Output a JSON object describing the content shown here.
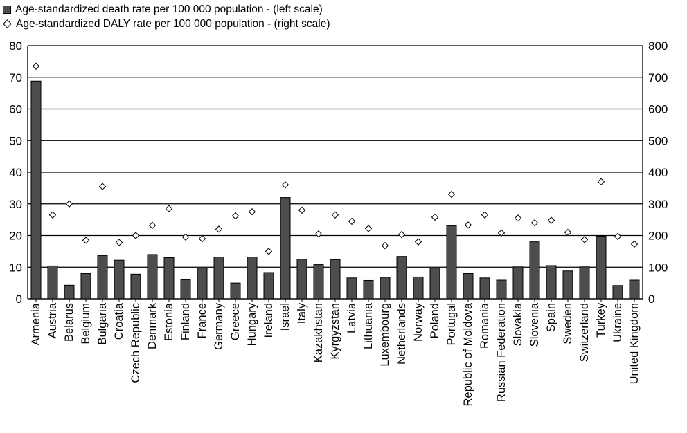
{
  "chart_data": {
    "type": "bar",
    "legend": [
      {
        "label": "Age-standardized death rate per 100 000 population - (left scale)",
        "marker": "bar"
      },
      {
        "label": "Age-standardized DALY rate per 100 000 population - (right scale)",
        "marker": "diamond"
      }
    ],
    "categories": [
      "Armenia",
      "Austria",
      "Belarus",
      "Belgium",
      "Bulgaria",
      "Croatia",
      "Czech Republic",
      "Denmark",
      "Estonia",
      "Finland",
      "France",
      "Germany",
      "Greece",
      "Hungary",
      "Ireland",
      "Israel",
      "Italy",
      "Kazakhstan",
      "Kyrgyzstan",
      "Latvia",
      "Lithuania",
      "Luxembourg",
      "Netherlands",
      "Norway",
      "Poland",
      "Portugal",
      "Republic of Moldova",
      "Romania",
      "Russian Federation",
      "Slovakia",
      "Slovenia",
      "Spain",
      "Sweden",
      "Switzerland",
      "Turkey",
      "Ukraine",
      "United Kingdom"
    ],
    "series": [
      {
        "name": "Age-standardized death rate per 100 000 population - (left scale)",
        "axis": "left",
        "type": "bar",
        "values": [
          68.8,
          10.4,
          4.3,
          8.0,
          13.7,
          12.2,
          7.8,
          14.0,
          13.0,
          6.0,
          9.7,
          13.2,
          5.0,
          13.2,
          8.3,
          32.0,
          12.5,
          10.8,
          12.4,
          6.6,
          5.8,
          6.8,
          13.4,
          6.9,
          9.7,
          23.1,
          8.0,
          6.6,
          5.9,
          10.1,
          18.0,
          10.5,
          8.8,
          10.1,
          19.8,
          4.2,
          5.9
        ]
      },
      {
        "name": "Age-standardized DALY rate per 100 000 population - (right scale)",
        "axis": "right",
        "type": "scatter",
        "values": [
          735,
          265,
          300,
          185,
          355,
          178,
          200,
          232,
          285,
          195,
          190,
          220,
          262,
          275,
          150,
          360,
          280,
          205,
          265,
          245,
          222,
          168,
          203,
          180,
          258,
          330,
          233,
          265,
          208,
          255,
          240,
          248,
          210,
          187,
          370,
          197,
          173
        ]
      }
    ],
    "ylim_left": [
      0,
      80
    ],
    "ylim_right": [
      0,
      800
    ],
    "yticks_left": [
      "0",
      "10",
      "20",
      "30",
      "40",
      "50",
      "60",
      "70",
      "80"
    ],
    "yticks_right": [
      "0",
      "100",
      "200",
      "300",
      "400",
      "500",
      "600",
      "700",
      "800"
    ],
    "grid": true,
    "legend_position": "top-left",
    "colors": {
      "bar_fill": "#4d4d4d",
      "bar_stroke": "#000000",
      "diamond_fill": "#ffffff",
      "grid": "#000000"
    }
  }
}
